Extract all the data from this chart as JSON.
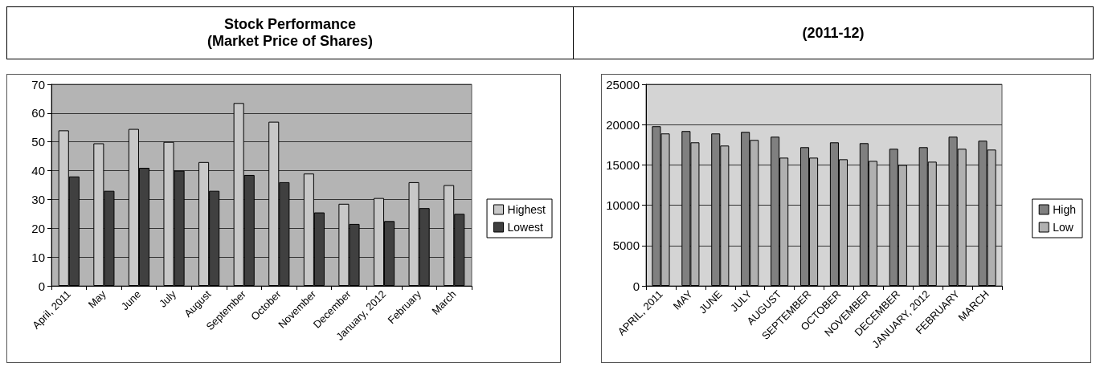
{
  "chart_data": [
    {
      "type": "bar",
      "title": "Stock Performance\n(Market Price of Shares)",
      "categories": [
        "April, 2011",
        "May",
        "June",
        "July",
        "August",
        "September",
        "October",
        "November",
        "December",
        "January, 2012",
        "February",
        "March"
      ],
      "series": [
        {
          "name": "Highest",
          "color": "#c8c8c8",
          "values": [
            54,
            49.5,
            54.5,
            50,
            43,
            63.5,
            57,
            39,
            28.5,
            30.5,
            36,
            35
          ]
        },
        {
          "name": "Lowest",
          "color": "#404040",
          "values": [
            38,
            33,
            41,
            40,
            33,
            38.5,
            36,
            25.5,
            21.5,
            22.5,
            27,
            25
          ]
        }
      ],
      "ylim": [
        0,
        70
      ],
      "yticks": [
        0,
        10,
        20,
        30,
        40,
        50,
        60,
        70
      ],
      "grid": "y",
      "legend": "right"
    },
    {
      "type": "bar",
      "title": "(2011-12)",
      "categories": [
        "APRIL, 2011",
        "MAY",
        "JUNE",
        "JULY",
        "AUGUST",
        "SEPTEMBER",
        "OCTOBER",
        "NOVEMBER",
        "DECEMBER",
        "JANUARY, 2012",
        "FEBRUARY",
        "MARCH"
      ],
      "series": [
        {
          "name": "High",
          "color": "#808080",
          "values": [
            19800,
            19200,
            18900,
            19100,
            18500,
            17200,
            17800,
            17700,
            17000,
            17200,
            18500,
            18000
          ]
        },
        {
          "name": "Low",
          "color": "#b0b0b0",
          "values": [
            18900,
            17800,
            17400,
            18100,
            15900,
            15900,
            15700,
            15500,
            15000,
            15400,
            17000,
            16900
          ]
        }
      ],
      "ylim": [
        0,
        25000
      ],
      "yticks": [
        0,
        5000,
        10000,
        15000,
        20000,
        25000
      ],
      "grid": "y",
      "legend": "right"
    }
  ]
}
